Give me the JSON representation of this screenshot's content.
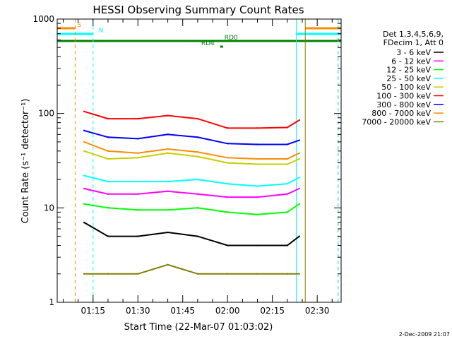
{
  "chart_data": {
    "type": "line",
    "title": "HESSI Observing Summary Count Rates",
    "xlabel": "Start Time (22-Mar-07 01:03:02)",
    "ylabel": "Count Rate (s⁻¹ detector⁻¹)",
    "y_scale": "log",
    "ylim": [
      1,
      1000
    ],
    "xlim": [
      "01:03",
      "02:38"
    ],
    "x_ticks": [
      "01:15",
      "01:30",
      "01:45",
      "02:00",
      "02:15",
      "02:30"
    ],
    "y_ticks": [
      "1",
      "10",
      "100",
      "1000"
    ],
    "grid": false,
    "legend_position": "right",
    "legend_header": [
      "Det 1,3,4,5,6,9,",
      "FDecim 1, Att 0"
    ],
    "series": [
      {
        "name": "3 - 6 keV",
        "color": "#000000",
        "x": [
          "01:12",
          "01:20",
          "01:30",
          "01:40",
          "01:50",
          "02:00",
          "02:10",
          "02:20",
          "02:24"
        ],
        "values": [
          7,
          5,
          5,
          5.5,
          5,
          4,
          4,
          4,
          5
        ]
      },
      {
        "name": "6 - 12 keV",
        "color": "#ff00ff",
        "x": [
          "01:12",
          "01:20",
          "01:30",
          "01:40",
          "01:50",
          "02:00",
          "02:10",
          "02:20",
          "02:24"
        ],
        "values": [
          16,
          14,
          14,
          15,
          14,
          13,
          13,
          14,
          16
        ]
      },
      {
        "name": "12 - 25 keV",
        "color": "#00ff00",
        "x": [
          "01:12",
          "01:20",
          "01:30",
          "01:40",
          "01:50",
          "02:00",
          "02:10",
          "02:20",
          "02:24"
        ],
        "values": [
          11,
          10,
          9.5,
          9.5,
          10,
          9,
          8.5,
          9,
          11
        ]
      },
      {
        "name": "25 - 50 keV",
        "color": "#00ffff",
        "x": [
          "01:12",
          "01:20",
          "01:30",
          "01:40",
          "01:50",
          "02:00",
          "02:10",
          "02:20",
          "02:24"
        ],
        "values": [
          22,
          19,
          19,
          19,
          20,
          18,
          17,
          18,
          21
        ]
      },
      {
        "name": "50 - 100 keV",
        "color": "#cccc00",
        "x": [
          "01:12",
          "01:20",
          "01:30",
          "01:40",
          "01:50",
          "02:00",
          "02:10",
          "02:20",
          "02:24"
        ],
        "values": [
          40,
          33,
          34,
          38,
          35,
          30,
          29,
          29,
          33
        ]
      },
      {
        "name": "100 - 300 keV",
        "color": "#ff0000",
        "x": [
          "01:12",
          "01:20",
          "01:30",
          "01:40",
          "01:50",
          "02:00",
          "02:10",
          "02:20",
          "02:24"
        ],
        "values": [
          105,
          88,
          88,
          95,
          88,
          70,
          70,
          71,
          85
        ]
      },
      {
        "name": "300 - 800 keV",
        "color": "#0000ff",
        "x": [
          "01:12",
          "01:20",
          "01:30",
          "01:40",
          "01:50",
          "02:00",
          "02:10",
          "02:20",
          "02:24"
        ],
        "values": [
          66,
          56,
          54,
          60,
          56,
          48,
          47,
          47,
          52
        ]
      },
      {
        "name": "800 - 7000 keV",
        "color": "#ff8c00",
        "x": [
          "01:12",
          "01:20",
          "01:30",
          "01:40",
          "01:50",
          "02:00",
          "02:10",
          "02:20",
          "02:24"
        ],
        "values": [
          50,
          40,
          38,
          42,
          39,
          34,
          33,
          33,
          38
        ]
      },
      {
        "name": "7000 - 20000 keV",
        "color": "#808000",
        "x": [
          "01:12",
          "01:20",
          "01:30",
          "01:40",
          "01:50",
          "02:00",
          "02:10",
          "02:20",
          "02:24"
        ],
        "values": [
          2,
          2,
          2,
          2.5,
          2,
          2,
          2,
          2,
          2
        ]
      }
    ],
    "flags": [
      {
        "label": "S",
        "color": "#ff8c00",
        "segments": [
          [
            "01:03",
            "01:09"
          ],
          [
            "02:26",
            "02:38"
          ]
        ]
      },
      {
        "label": "N",
        "color": "#00ffff",
        "segments": [
          [
            "01:03",
            "01:15"
          ],
          [
            "02:23",
            "02:38"
          ]
        ]
      },
      {
        "label": "RD0",
        "color": "#008000",
        "segments": [
          [
            "01:03",
            "02:38"
          ]
        ]
      },
      {
        "label": "RD4",
        "color": "#008000",
        "segments": [
          [
            "01:58",
            "01:58"
          ]
        ]
      }
    ],
    "footer": "2-Dec-2009 21:07"
  }
}
